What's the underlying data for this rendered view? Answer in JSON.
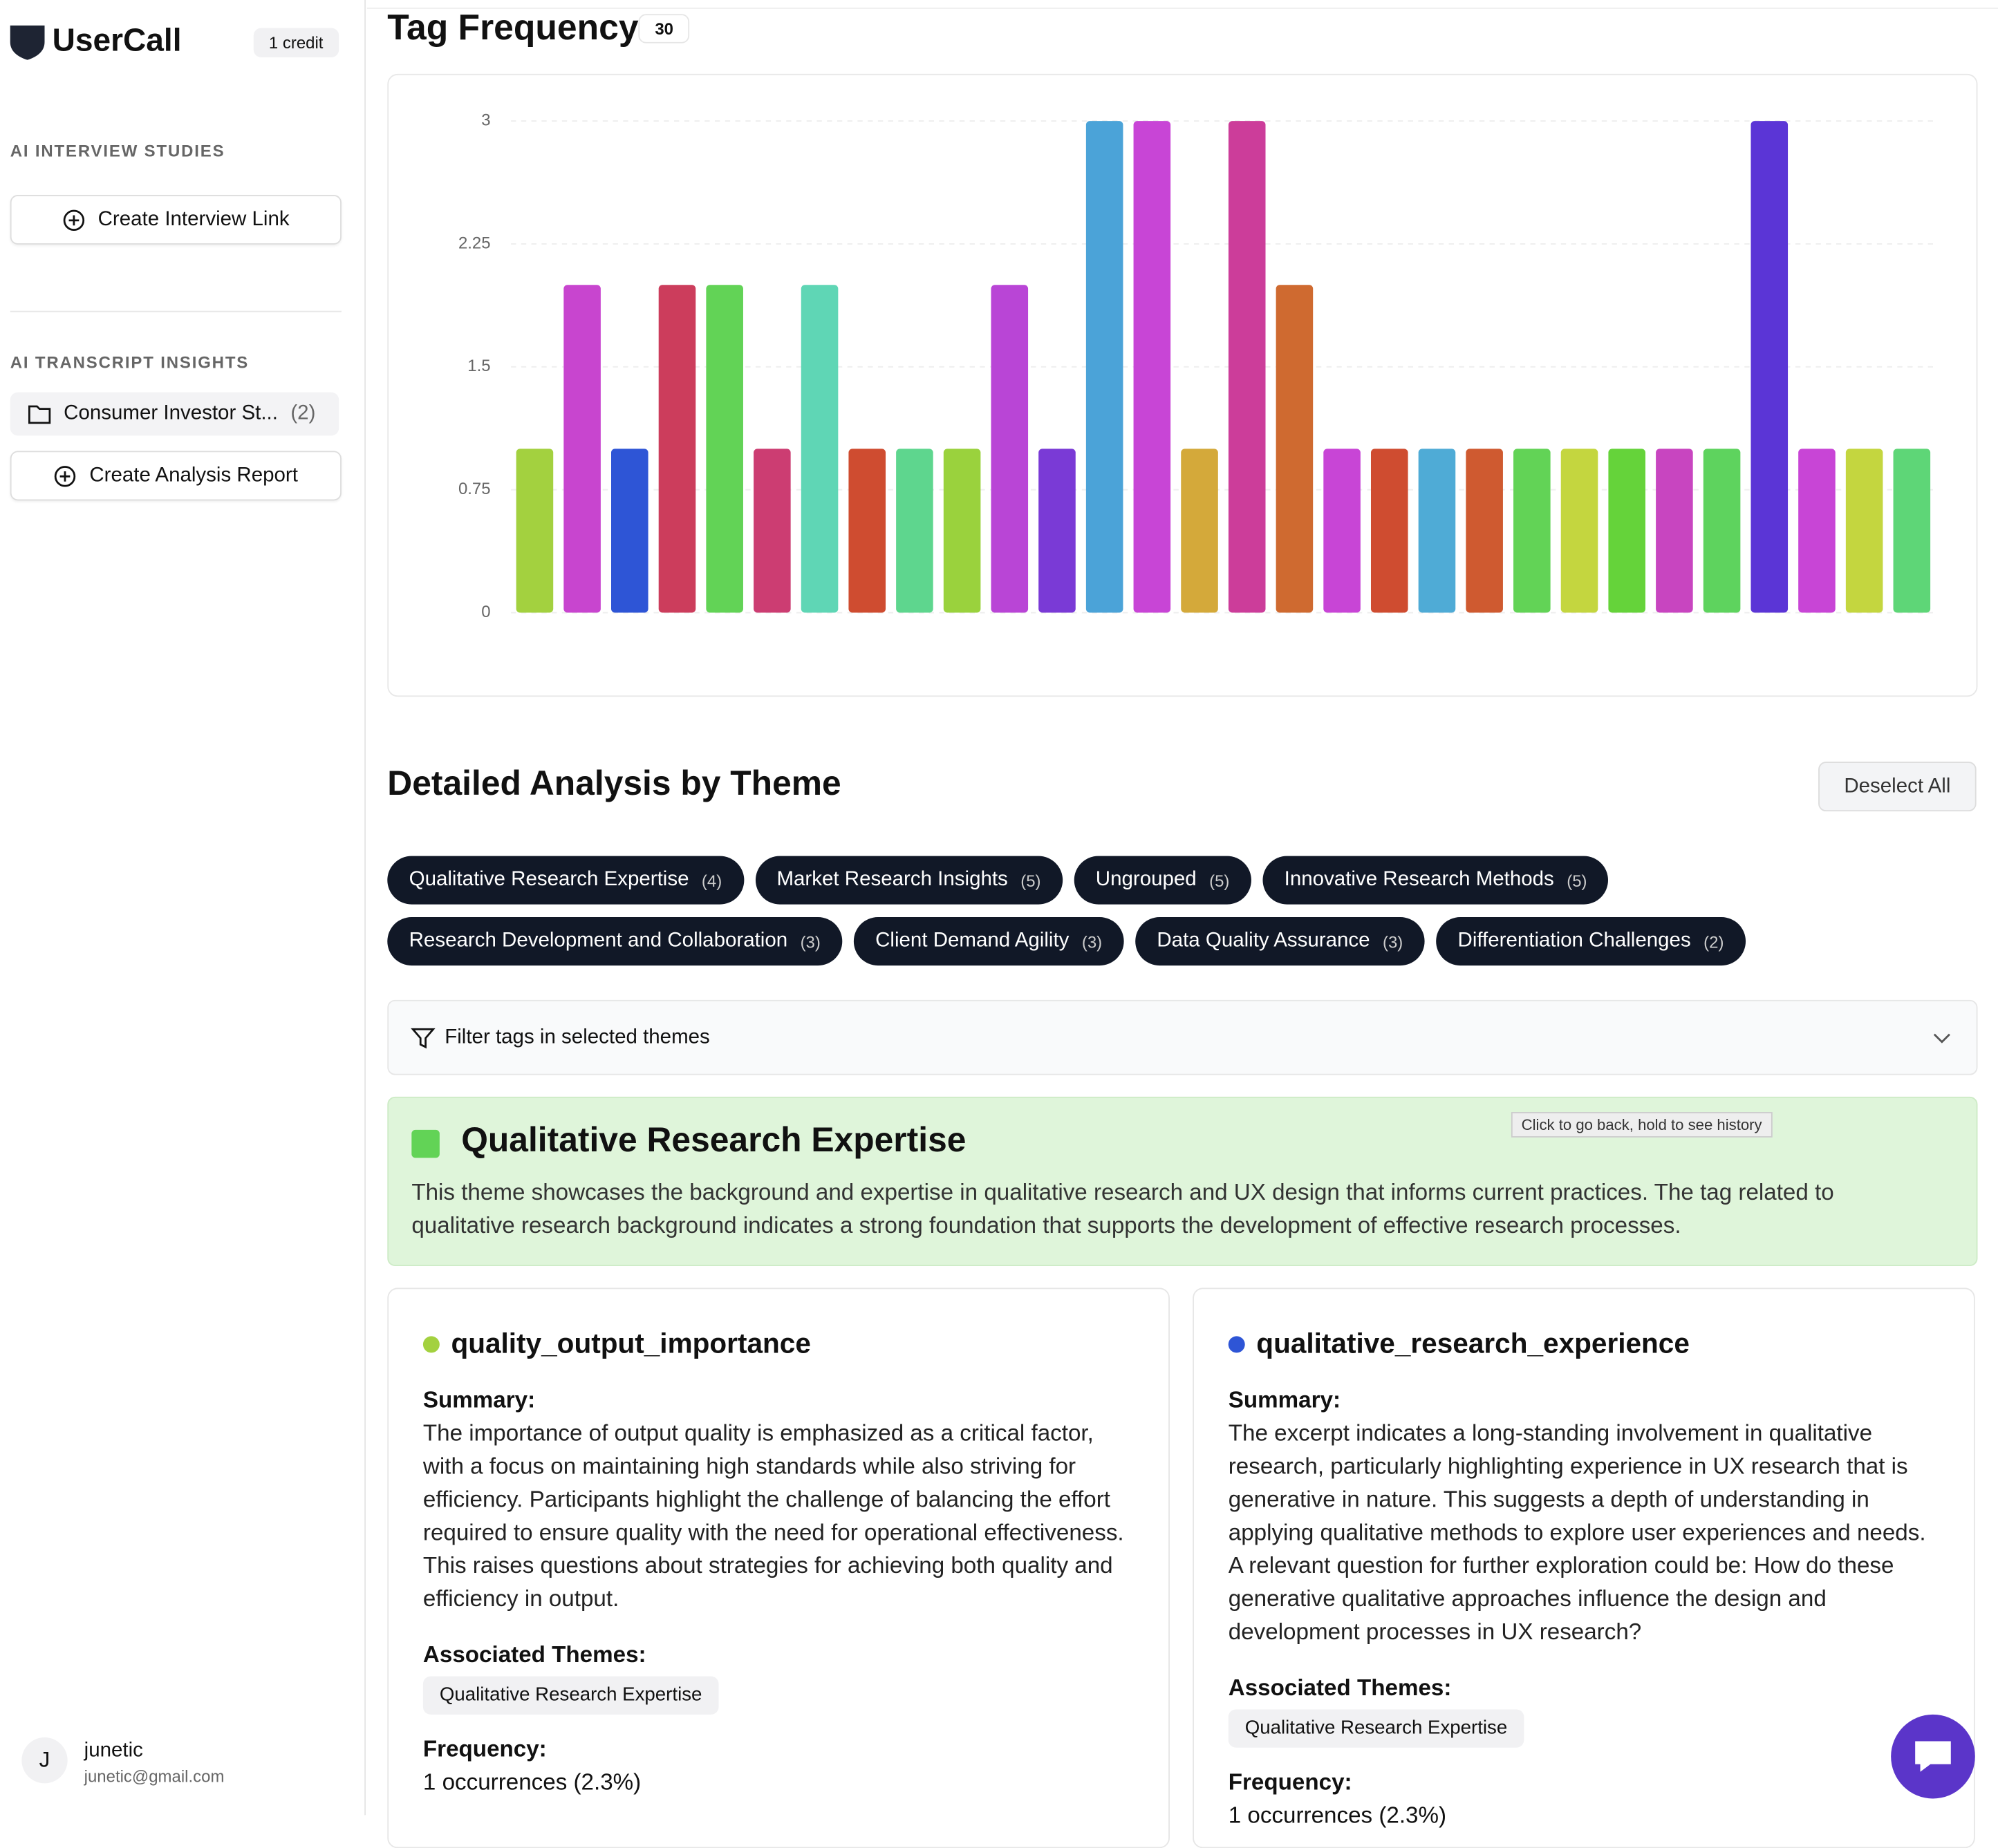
{
  "sidebar": {
    "brand": "UserCall",
    "credits": "1 credit",
    "interview_heading": "AI INTERVIEW STUDIES",
    "create_interview": "Create Interview Link",
    "insights_heading": "AI TRANSCRIPT INSIGHTS",
    "folder": {
      "name": "Consumer Investor St...",
      "count": "(2)"
    },
    "create_report": "Create Analysis Report",
    "user": {
      "initial": "J",
      "name": "junetic",
      "email": "junetic@gmail.com"
    }
  },
  "chart_data": {
    "type": "bar",
    "title": "Tag Frequency",
    "tag_count": 30,
    "categories": [
      null,
      null,
      null,
      null,
      null,
      null,
      null,
      null,
      null,
      null,
      null,
      null,
      null,
      null,
      null,
      null,
      null,
      null,
      null,
      null,
      null,
      null,
      null,
      null,
      null,
      null,
      null,
      null,
      null,
      null
    ],
    "values": [
      1,
      2,
      1,
      2,
      2,
      1,
      2,
      1,
      1,
      1,
      2,
      1,
      3,
      3,
      1,
      3,
      2,
      1,
      1,
      1,
      1,
      1,
      1,
      1,
      1,
      1,
      3,
      1,
      1,
      1
    ],
    "colors": [
      "#a3d13f",
      "#c845cf",
      "#2e55d6",
      "#cc3d5c",
      "#62d356",
      "#cc3d72",
      "#5fd6b5",
      "#cf4c30",
      "#5ed68e",
      "#9ad23d",
      "#b945d6",
      "#7a3ad6",
      "#4ba3d8",
      "#c845d6",
      "#d4a93a",
      "#cc3d9a",
      "#cf6a30",
      "#c845d6",
      "#cf4c30",
      "#4fabd6",
      "#cf5a30",
      "#62d356",
      "#c4d63f",
      "#65d33a",
      "#c845c0",
      "#5ed35e",
      "#5b35d6",
      "#c845d6",
      "#c4d63f",
      "#5ed677"
    ],
    "ylim": [
      0,
      3
    ],
    "yticks": [
      0,
      0.75,
      1.5,
      2.25,
      3
    ],
    "grid": true
  },
  "themes": {
    "title": "Detailed Analysis by Theme",
    "deselect": "Deselect All",
    "filter": "Filter tags in selected themes",
    "chips": [
      {
        "name": "Qualitative Research Expertise",
        "count": "(4)"
      },
      {
        "name": "Market Research Insights",
        "count": "(5)"
      },
      {
        "name": "Ungrouped",
        "count": "(5)"
      },
      {
        "name": "Innovative Research Methods",
        "count": "(5)"
      },
      {
        "name": "Research Development and Collaboration",
        "count": "(3)"
      },
      {
        "name": "Client Demand Agility",
        "count": "(3)"
      },
      {
        "name": "Data Quality Assurance",
        "count": "(3)"
      },
      {
        "name": "Differentiation Challenges",
        "count": "(2)"
      }
    ]
  },
  "theme_panel": {
    "title": "Qualitative Research Expertise",
    "color": "#62d356",
    "tooltip": "Click to go back, hold to see history",
    "description": "This theme showcases the background and expertise in qualitative research and UX design that informs current practices. The tag related to qualitative research background indicates a strong foundation that supports the development of effective research processes."
  },
  "tags": [
    {
      "name": "quality_output_importance",
      "color": "#a3d13f",
      "summary_label": "Summary:",
      "summary": "The importance of output quality is emphasized as a critical factor, with a focus on maintaining high standards while also striving for efficiency. Participants highlight the challenge of balancing the effort required to ensure quality with the need for operational effectiveness. This raises questions about strategies for achieving both quality and efficiency in output.",
      "themes_label": "Associated Themes:",
      "theme": "Qualitative Research Expertise",
      "frequency_label": "Frequency:",
      "frequency": "1 occurrences (2.3%)"
    },
    {
      "name": "qualitative_research_experience",
      "color": "#2e55d6",
      "summary_label": "Summary:",
      "summary": "The excerpt indicates a long-standing involvement in qualitative research, particularly highlighting experience in UX research that is generative in nature. This suggests a depth of understanding in applying qualitative methods to explore user experiences and needs. A relevant question for further exploration could be: How do these generative qualitative approaches influence the design and development processes in UX research?",
      "themes_label": "Associated Themes:",
      "theme": "Qualitative Research Expertise",
      "frequency_label": "Frequency:",
      "frequency": "1 occurrences (2.3%)"
    }
  ]
}
